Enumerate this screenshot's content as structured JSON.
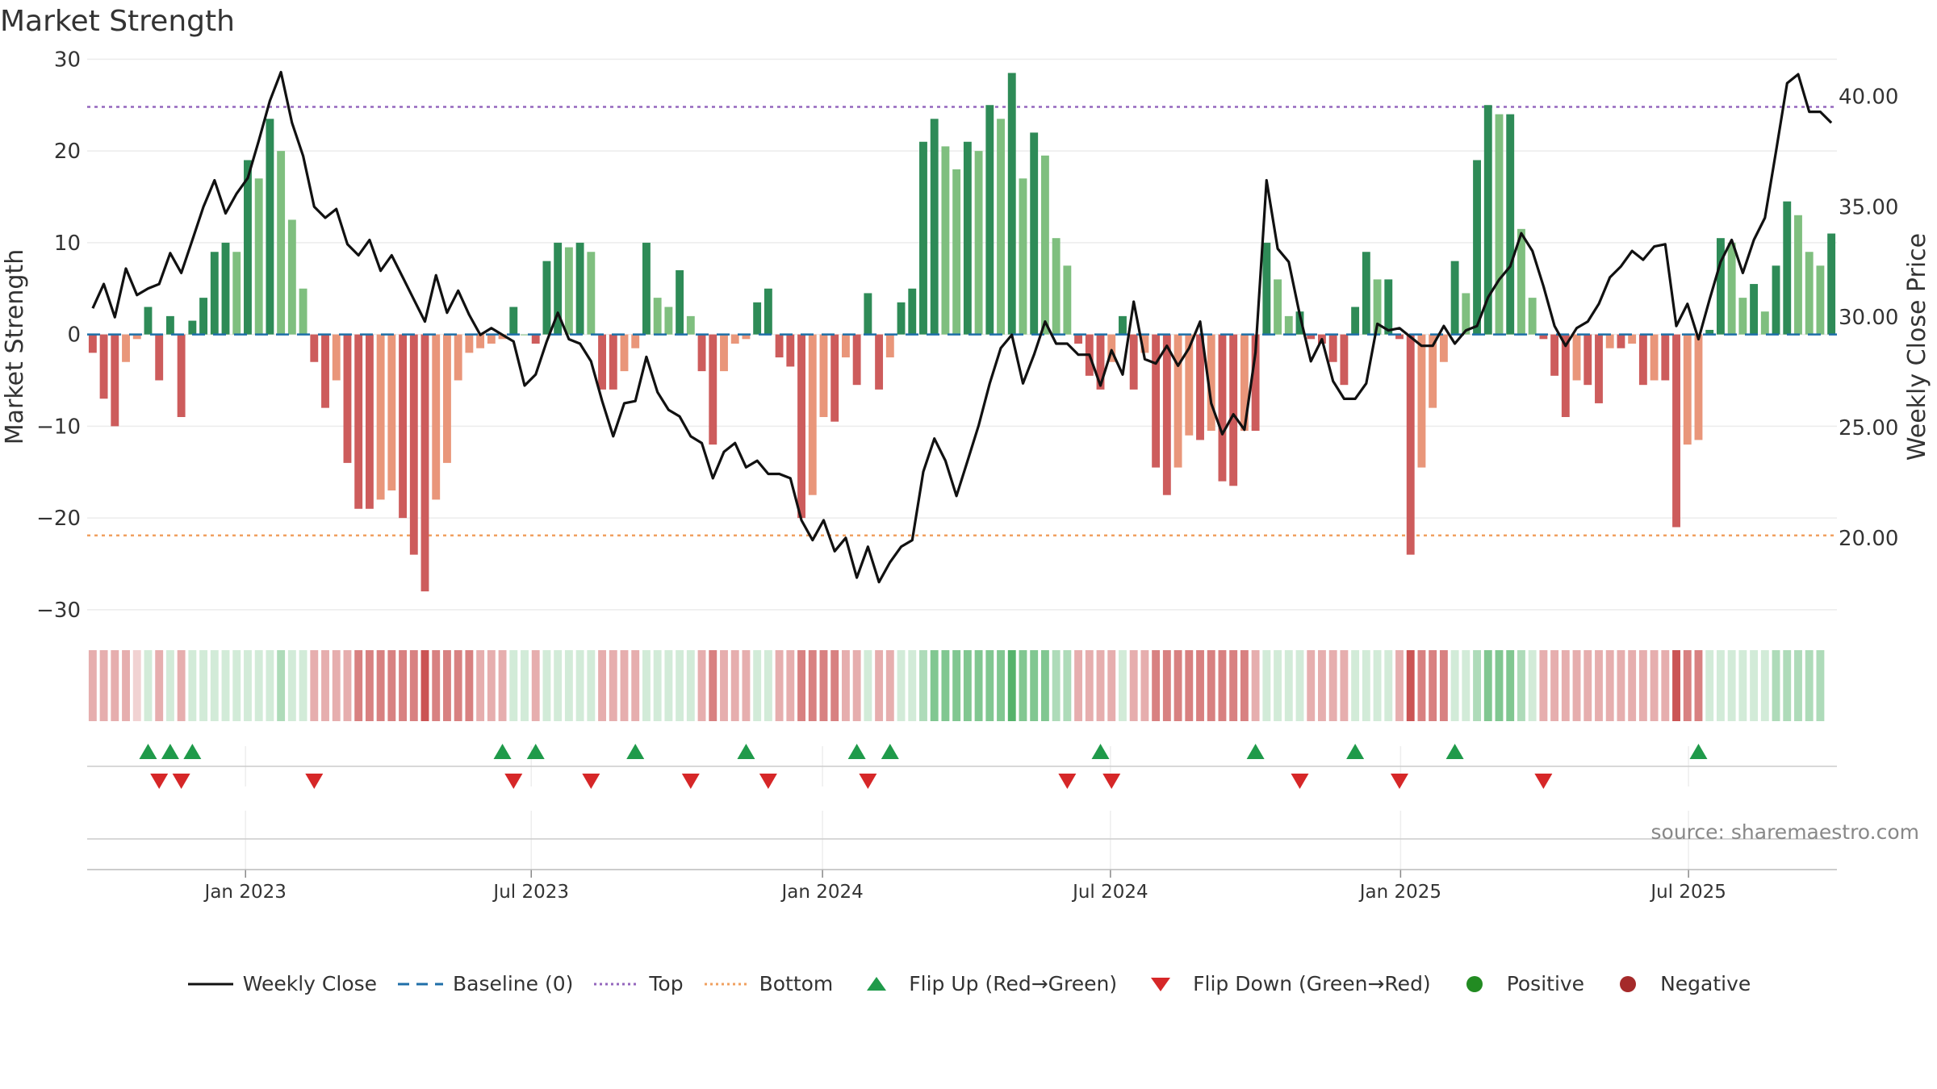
{
  "chart_data": {
    "type": "bar",
    "title": "Market Strength",
    "ylabel_left": "Market Strength",
    "ylabel_right": "Weekly Close Price",
    "source": "source: sharemaestro.com",
    "left_axis": {
      "ylim": [
        -33,
        31
      ],
      "ticks": [
        30,
        20,
        10,
        0,
        -10,
        -20,
        -30
      ],
      "tick_labels": [
        "30",
        "20",
        "10",
        "0",
        "−10",
        "−20",
        "−30"
      ]
    },
    "right_axis": {
      "ylim": [
        15.5,
        42.1
      ],
      "ticks": [
        40,
        35,
        30,
        25,
        20
      ],
      "tick_labels": [
        "40.00",
        "35.00",
        "30.00",
        "25.00",
        "20.00"
      ]
    },
    "top_line": 24.8,
    "bottom_line": -21.9,
    "x_start": "2022-09-26",
    "x_end": "2025-09-29",
    "x_ticks": [
      {
        "label": "Jan 2023",
        "week": 14.3
      },
      {
        "label": "Jul 2023",
        "week": 40.1
      },
      {
        "label": "Jan 2024",
        "week": 66.4
      },
      {
        "label": "Jul 2024",
        "week": 92.4
      },
      {
        "label": "Jan 2025",
        "week": 118.6
      },
      {
        "label": "Jul 2025",
        "week": 144.6
      }
    ],
    "strength": [
      -2,
      -7,
      -10,
      -3,
      -0.5,
      3,
      -5,
      2,
      -9,
      1.5,
      4,
      9,
      10,
      9,
      19,
      17,
      23.5,
      20,
      12.5,
      5,
      -3,
      -8,
      -5,
      -14,
      -19,
      -19,
      -18,
      -17,
      -20,
      -24,
      -28,
      -18,
      -14,
      -5,
      -2,
      -1.5,
      -1,
      -0.5,
      3,
      0,
      -1,
      8,
      10,
      9.5,
      10,
      9,
      -6,
      -6,
      -4,
      -1.5,
      10,
      4,
      3,
      7,
      2,
      -4,
      -12,
      -4,
      -1,
      -0.5,
      3.5,
      5,
      -2.5,
      -3.5,
      -20,
      -17.5,
      -9,
      -9.5,
      -2.5,
      -5.5,
      4.5,
      -6,
      -2.5,
      3.5,
      5,
      21,
      23.5,
      20.5,
      18,
      21,
      20,
      25,
      23.5,
      28.5,
      17,
      22,
      19.5,
      10.5,
      7.5,
      -1,
      -4.5,
      -6,
      -3,
      2,
      -6,
      -2,
      -14.5,
      -17.5,
      -14.5,
      -11,
      -11.5,
      -10.5,
      -16,
      -16.5,
      -10.5,
      -10.5,
      10,
      6,
      2,
      2.5,
      -0.5,
      -1,
      -3,
      -5.5,
      3,
      9,
      6,
      6,
      -0.5,
      -24,
      -14.5,
      -8,
      -3,
      8,
      4.5,
      19,
      25,
      24,
      24,
      11.5,
      4,
      -0.5,
      -4.5,
      -9,
      -5,
      -5.5,
      -7.5,
      -1.5,
      -1.5,
      -1,
      -5.5,
      -5,
      -5,
      -21,
      -12,
      -11.5,
      0.5,
      10.5,
      10,
      4,
      5.5,
      2.5,
      7.5,
      14.5,
      13,
      9,
      7.5,
      11
    ],
    "weekly_close": [
      30.4,
      31.5,
      30.0,
      32.2,
      31.0,
      31.3,
      31.5,
      32.9,
      32.0,
      33.5,
      35.0,
      36.2,
      34.7,
      35.6,
      36.3,
      38.0,
      39.8,
      41.1,
      38.8,
      37.3,
      35.0,
      34.5,
      34.9,
      33.3,
      32.8,
      33.5,
      32.1,
      32.8,
      31.8,
      30.8,
      29.8,
      31.9,
      30.2,
      31.2,
      30.1,
      29.2,
      29.5,
      29.2,
      28.9,
      26.9,
      27.4,
      28.9,
      30.2,
      29.0,
      28.8,
      28.0,
      26.2,
      24.6,
      26.1,
      26.2,
      28.2,
      26.6,
      25.8,
      25.5,
      24.6,
      24.3,
      22.7,
      23.9,
      24.3,
      23.2,
      23.5,
      22.9,
      22.9,
      22.7,
      20.8,
      19.9,
      20.8,
      19.4,
      20.0,
      18.2,
      19.6,
      18.0,
      18.9,
      19.6,
      19.9,
      23.0,
      24.5,
      23.5,
      21.9,
      23.5,
      25.1,
      27.0,
      28.6,
      29.2,
      27.0,
      28.3,
      29.8,
      28.8,
      28.8,
      28.3,
      28.3,
      26.9,
      28.5,
      27.4,
      30.7,
      28.1,
      27.9,
      28.7,
      27.8,
      28.6,
      29.8,
      26.1,
      24.7,
      25.6,
      24.9,
      28.4,
      36.2,
      33.1,
      32.5,
      30.1,
      28.0,
      29.0,
      27.1,
      26.3,
      26.3,
      27.0,
      29.7,
      29.4,
      29.5,
      29.1,
      28.7,
      28.7,
      29.6,
      28.8,
      29.4,
      29.6,
      30.9,
      31.7,
      32.3,
      33.8,
      33.0,
      31.4,
      29.6,
      28.7,
      29.5,
      29.8,
      30.6,
      31.8,
      32.3,
      33.0,
      32.6,
      33.2,
      33.3,
      29.6,
      30.6,
      29.0,
      30.8,
      32.5,
      33.5,
      32.0,
      33.5,
      34.5,
      37.5,
      40.6,
      41.0,
      39.3,
      39.3,
      38.8
    ],
    "heatmap": [
      2,
      2,
      2,
      2,
      1,
      1,
      2,
      1,
      2,
      1,
      1,
      1,
      1,
      1,
      1,
      1,
      1,
      2,
      1,
      1,
      2,
      2,
      2,
      2,
      3,
      3,
      3,
      3,
      3,
      3,
      4,
      3,
      3,
      3,
      3,
      2,
      2,
      2,
      1,
      1,
      2,
      1,
      1,
      1,
      1,
      1,
      2,
      2,
      2,
      2,
      1,
      1,
      1,
      1,
      1,
      2,
      3,
      2,
      2,
      2,
      1,
      1,
      2,
      2,
      3,
      3,
      3,
      3,
      2,
      2,
      1,
      2,
      2,
      1,
      1,
      2,
      3,
      3,
      3,
      3,
      3,
      3,
      3,
      4,
      3,
      3,
      3,
      2,
      2,
      2,
      2,
      2,
      2,
      1,
      2,
      2,
      3,
      3,
      3,
      3,
      3,
      3,
      3,
      3,
      3,
      2,
      1,
      1,
      1,
      1,
      2,
      2,
      2,
      2,
      1,
      1,
      1,
      1,
      2,
      4,
      3,
      3,
      3,
      1,
      1,
      2,
      3,
      3,
      3,
      2,
      1,
      2,
      2,
      2,
      2,
      2,
      2,
      2,
      2,
      2,
      2,
      2,
      2,
      4,
      3,
      3,
      1,
      1,
      1,
      1,
      1,
      1,
      2,
      2,
      2,
      2,
      2
    ],
    "flip_up_weeks": [
      5,
      7,
      9,
      37,
      40,
      49,
      59,
      69,
      72,
      91,
      105,
      114,
      123,
      145
    ],
    "flip_down_weeks": [
      6,
      8,
      20,
      38,
      45,
      54,
      61,
      70,
      88,
      92,
      109,
      118,
      131
    ],
    "legend": [
      {
        "label": "Weekly Close",
        "symbol": "solid-line",
        "color": "#111111"
      },
      {
        "label": "Baseline (0)",
        "symbol": "dash-line",
        "color": "#1f6fa8"
      },
      {
        "label": "Top",
        "symbol": "dot-line",
        "color": "#9467bd"
      },
      {
        "label": "Bottom",
        "symbol": "dot-line",
        "color": "#f0a060"
      },
      {
        "label": "Flip Up (Red→Green)",
        "symbol": "triangle-up-icon",
        "color": "#1f9a4a"
      },
      {
        "label": "Flip Down (Green→Red)",
        "symbol": "triangle-down-icon",
        "color": "#d62728"
      },
      {
        "label": "Positive",
        "symbol": "circle-icon",
        "color": "#228b22"
      },
      {
        "label": "Negative",
        "symbol": "circle-icon",
        "color": "#a52a2a"
      }
    ],
    "colors": {
      "pos_strong": "#2e8b57",
      "pos_weak": "#7fbf7f",
      "neg_strong": "#cd5c5c",
      "neg_weak": "#e9967a",
      "price_line": "#111111",
      "baseline": "#1f6fa8",
      "top": "#9467bd",
      "bottom": "#f0a060",
      "flip_up": "#1f9a4a",
      "flip_down": "#d62728"
    }
  }
}
